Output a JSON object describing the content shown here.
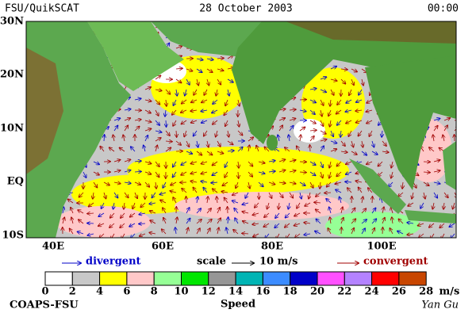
{
  "header": {
    "left": "FSU/QuikSCAT",
    "center": "28 October 2003",
    "right": "00:00"
  },
  "map": {
    "lat_labels": [
      "30N",
      "20N",
      "10N",
      "EQ",
      "10S"
    ],
    "lon_labels": [
      "40E",
      "60E",
      "80E",
      "100E"
    ]
  },
  "legend": {
    "divergent": "divergent",
    "scale": "scale",
    "scale_value": "10 m/s",
    "convergent": "convergent"
  },
  "colorbar": {
    "levels": [
      0,
      2,
      4,
      6,
      8,
      10,
      12,
      14,
      16,
      18,
      20,
      22,
      24,
      26,
      28
    ],
    "unit": "m/s",
    "label": "Speed",
    "colors": [
      "#ffffff",
      "#c8c8c8",
      "#ffff00",
      "#ffc8c8",
      "#96ff96",
      "#00e600",
      "#969696",
      "#00b4b4",
      "#3c8cff",
      "#0000c8",
      "#ff50ff",
      "#b482ff",
      "#ff0000",
      "#c84600"
    ]
  },
  "footer": {
    "left": "COAPS-FSU",
    "right": "Yan Gu"
  }
}
